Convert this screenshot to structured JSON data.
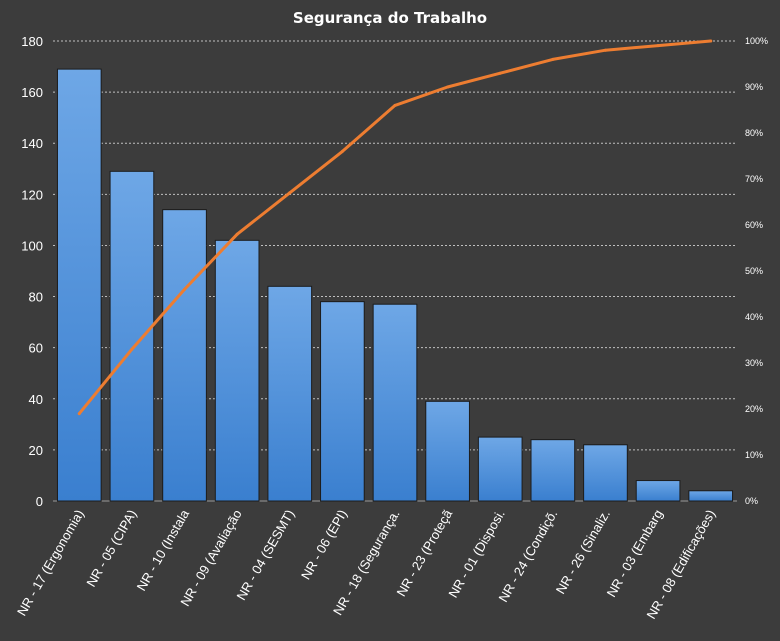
{
  "chart_data": {
    "type": "bar",
    "title": "Segurança do Trabalho",
    "categories": [
      "NR - 17 (Ergonomia)",
      "NR - 05 (CIPA)",
      "NR - 10 (Instala",
      "NR - 09 (Avaliação",
      "NR - 04 (SESMT)",
      "NR - 06 (EPI)",
      "NR - 18 (Segurança.",
      "NR - 23 (Proteçã",
      "NR - 01 (Disposi.",
      "NR - 24 (Condiçõ.",
      "NR - 26 (Sinaliz.",
      "NR - 03 (Embarg",
      "NR - 08 (Edificações)"
    ],
    "series": [
      {
        "type": "bar",
        "values": [
          169,
          129,
          114,
          102,
          84,
          78,
          77,
          39,
          25,
          24,
          22,
          8,
          4
        ]
      },
      {
        "type": "line",
        "axis": "right",
        "values": [
          0.19,
          0.33,
          0.46,
          0.58,
          0.67,
          0.76,
          0.86,
          0.9,
          0.93,
          0.96,
          0.98,
          0.99,
          1.0
        ]
      }
    ],
    "ylim": [
      0,
      180
    ],
    "y_ticks": [
      0,
      20,
      40,
      60,
      80,
      100,
      120,
      140,
      160,
      180
    ],
    "y2lim": [
      0,
      1
    ],
    "y2_ticks": [
      "0%",
      "10%",
      "20%",
      "30%",
      "40%",
      "50%",
      "60%",
      "70%",
      "80%",
      "90%",
      "100%"
    ],
    "grid": "horizontal-dashed",
    "legend": "none",
    "colors": {
      "background": "#3c3c3c",
      "bar_top": "#6ea7e6",
      "bar_bottom": "#3a7fcf",
      "bar_border": "#1c1c1c",
      "line": "#ed7d31",
      "grid": "#d8d8d8",
      "text": "#ffffff"
    }
  }
}
